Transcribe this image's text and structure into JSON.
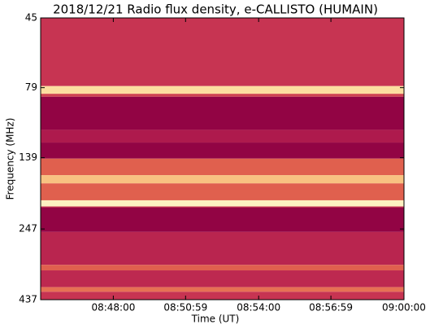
{
  "chart_data": {
    "type": "spectrogram",
    "title": "2018/12/21  Radio flux density, e-CALLISTO (HUMAIN)",
    "xlabel": "Time (UT)",
    "ylabel": "Frequency (MHz)",
    "xlim": [
      "08:45:00",
      "09:00:00"
    ],
    "xticks": [
      "08:48:00",
      "08:50:59",
      "08:54:00",
      "08:56:59",
      "09:00:00"
    ],
    "ylim": [
      45,
      437
    ],
    "yticks": [
      45,
      79,
      139,
      247,
      437
    ],
    "ylog": true,
    "yinverted": true,
    "colormap": [
      "#8c0042",
      "#a3104a",
      "#c42f52",
      "#e0604e",
      "#f39a63",
      "#fbd58f",
      "#fdf6cc"
    ],
    "bands": [
      {
        "from": 45,
        "to": 78,
        "level": 0.35
      },
      {
        "from": 78,
        "to": 83,
        "level": 0.88
      },
      {
        "from": 83,
        "to": 85,
        "level": 0.4
      },
      {
        "from": 85,
        "to": 111,
        "level": 0.04
      },
      {
        "from": 111,
        "to": 123,
        "level": 0.22
      },
      {
        "from": 123,
        "to": 140,
        "level": 0.04
      },
      {
        "from": 140,
        "to": 160,
        "level": 0.5
      },
      {
        "from": 160,
        "to": 171,
        "level": 0.78
      },
      {
        "from": 171,
        "to": 196,
        "level": 0.5
      },
      {
        "from": 196,
        "to": 206,
        "level": 0.97
      },
      {
        "from": 206,
        "to": 208,
        "level": 0.3
      },
      {
        "from": 208,
        "to": 253,
        "level": 0.04
      },
      {
        "from": 253,
        "to": 330,
        "level": 0.28
      },
      {
        "from": 330,
        "to": 345,
        "level": 0.5
      },
      {
        "from": 345,
        "to": 395,
        "level": 0.3
      },
      {
        "from": 395,
        "to": 410,
        "level": 0.55
      },
      {
        "from": 410,
        "to": 437,
        "level": 0.35
      }
    ]
  }
}
